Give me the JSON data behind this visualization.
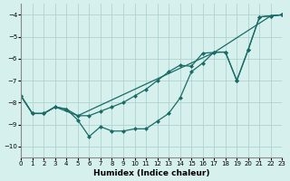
{
  "xlabel": "Humidex (Indice chaleur)",
  "bg_color": "#d6f0ee",
  "grid_color": "#b0d4d0",
  "line_color": "#1a6b65",
  "xlim": [
    0,
    23
  ],
  "ylim": [
    -10.5,
    -3.5
  ],
  "yticks": [
    -10,
    -9,
    -8,
    -7,
    -6,
    -5,
    -4
  ],
  "xticks": [
    0,
    1,
    2,
    3,
    4,
    5,
    6,
    7,
    8,
    9,
    10,
    11,
    12,
    13,
    14,
    15,
    16,
    17,
    18,
    19,
    20,
    21,
    22,
    23
  ],
  "line1_x": [
    0,
    1,
    2,
    3,
    4,
    5,
    6,
    7,
    8,
    9,
    10,
    11,
    12,
    13,
    14,
    15,
    16,
    17,
    18,
    19,
    20,
    21,
    22,
    23
  ],
  "line1_y": [
    -7.7,
    -8.5,
    -8.5,
    -8.2,
    -8.3,
    -8.8,
    -9.55,
    -9.1,
    -9.3,
    -9.3,
    -9.2,
    -9.2,
    -8.85,
    -8.5,
    -7.8,
    -6.6,
    -6.2,
    -5.7,
    -5.7,
    -7.0,
    -5.6,
    -4.1,
    -4.05,
    -4.0
  ],
  "line2_x": [
    0,
    1,
    2,
    3,
    4,
    5,
    6,
    7,
    8,
    9,
    10,
    11,
    12,
    13,
    14,
    15,
    16,
    17,
    18,
    19,
    20,
    21,
    22,
    23
  ],
  "line2_y": [
    -7.7,
    -8.5,
    -8.5,
    -8.2,
    -8.3,
    -8.6,
    -8.6,
    -8.4,
    -8.2,
    -8.0,
    -7.7,
    -7.4,
    -7.0,
    -6.6,
    -6.3,
    -6.35,
    -5.75,
    -5.72,
    -5.7,
    -7.0,
    -5.6,
    -4.1,
    -4.05,
    -4.0
  ],
  "line3_x": [
    0,
    1,
    2,
    3,
    5,
    17,
    22,
    23
  ],
  "line3_y": [
    -7.7,
    -8.5,
    -8.5,
    -8.2,
    -8.6,
    -5.72,
    -4.05,
    -4.0
  ]
}
